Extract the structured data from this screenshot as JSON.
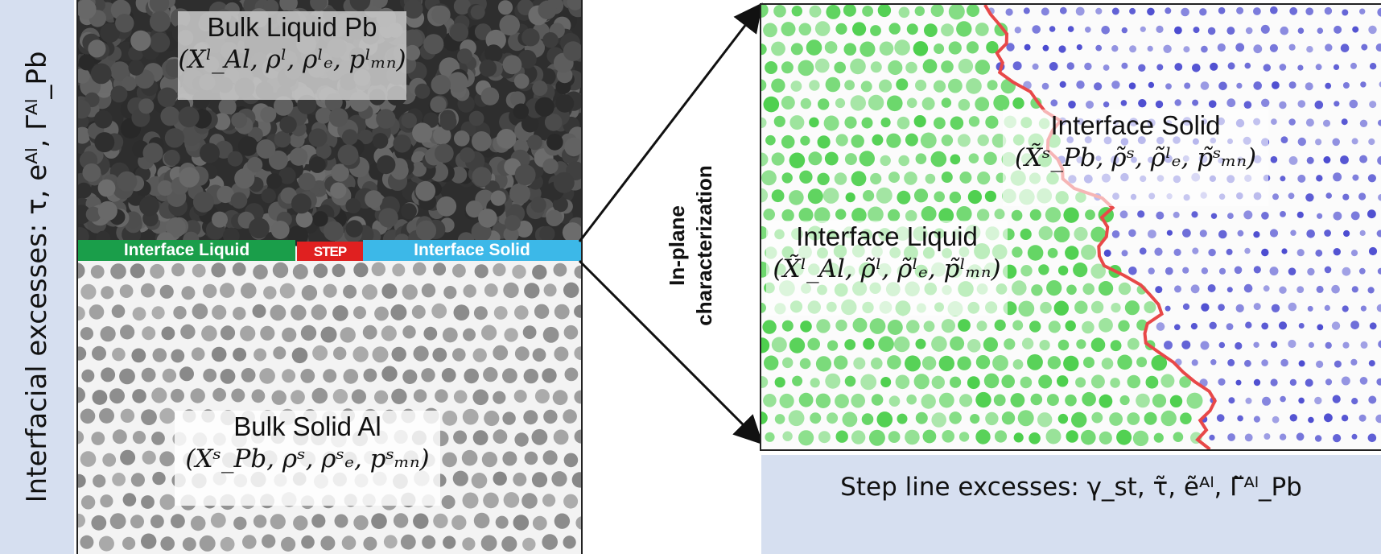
{
  "left_banner": {
    "text": "Interfacial excesses: τ, eᴬˡ, Γᴬˡ_Pb"
  },
  "bulk_liquid": {
    "title": "Bulk Liquid Pb",
    "vars": "(Xˡ_Al, ρˡ, ρˡₑ, pˡₘₙ)"
  },
  "bulk_solid": {
    "title": "Bulk Solid Al",
    "vars": "(Xˢ_Pb, ρˢ, ρˢₑ, pˢₘₙ)"
  },
  "strips": {
    "interface_liquid": "Interface Liquid",
    "step": "STEP",
    "interface_solid": "Interface Solid"
  },
  "inplane": {
    "line1": "In-plane",
    "line2": "characterization"
  },
  "interface_solid": {
    "title": "Interface Solid",
    "vars": "(X̃ˢ_Pb, ρ̃ˢ, ρ̃ˡₑ, p̃ˢₘₙ)"
  },
  "interface_liquid": {
    "title": "Interface Liquid",
    "vars": "(X̃ˡ_Al, ρ̃ˡ, ρ̃ˡₑ, p̃ˡₘₙ)"
  },
  "bottom_banner": {
    "text": "Step line excesses: γ_st, τ̃, ẽᴬˡ, Γ̃ᴬˡ_Pb"
  },
  "colors": {
    "banner": "#d6dff0",
    "liquid_atoms": "#3a3a3a",
    "solid_atoms": "#9a9a9a",
    "green_atoms": "#4ccf4c",
    "blue_atoms": "#4b4bd0",
    "step_line": "#e84848",
    "strip_liquid": "#1a9e4a",
    "strip_step": "#e02020",
    "strip_solid": "#3cb8e8"
  }
}
